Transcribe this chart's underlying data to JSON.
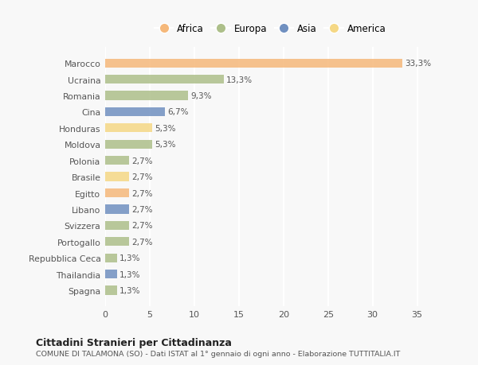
{
  "countries": [
    "Marocco",
    "Ucraina",
    "Romania",
    "Cina",
    "Honduras",
    "Moldova",
    "Polonia",
    "Brasile",
    "Egitto",
    "Libano",
    "Svizzera",
    "Portogallo",
    "Repubblica Ceca",
    "Thailandia",
    "Spagna"
  ],
  "values": [
    33.3,
    13.3,
    9.3,
    6.7,
    5.3,
    5.3,
    2.7,
    2.7,
    2.7,
    2.7,
    2.7,
    2.7,
    1.3,
    1.3,
    1.3
  ],
  "labels": [
    "33,3%",
    "13,3%",
    "9,3%",
    "6,7%",
    "5,3%",
    "5,3%",
    "2,7%",
    "2,7%",
    "2,7%",
    "2,7%",
    "2,7%",
    "2,7%",
    "1,3%",
    "1,3%",
    "1,3%"
  ],
  "continents": [
    "Africa",
    "Europa",
    "Europa",
    "Asia",
    "America",
    "Europa",
    "Europa",
    "America",
    "Africa",
    "Asia",
    "Europa",
    "Europa",
    "Europa",
    "Asia",
    "Europa"
  ],
  "colors": {
    "Africa": "#F5B87A",
    "Europa": "#ADBF8A",
    "Asia": "#7090C0",
    "America": "#F5D885"
  },
  "legend_order": [
    "Africa",
    "Europa",
    "Asia",
    "America"
  ],
  "title1": "Cittadini Stranieri per Cittadinanza",
  "title2": "COMUNE DI TALAMONA (SO) - Dati ISTAT al 1° gennaio di ogni anno - Elaborazione TUTTITALIA.IT",
  "xlim": [
    0,
    37
  ],
  "xticks": [
    0,
    5,
    10,
    15,
    20,
    25,
    30,
    35
  ],
  "background_color": "#f8f8f8",
  "bar_height": 0.55
}
